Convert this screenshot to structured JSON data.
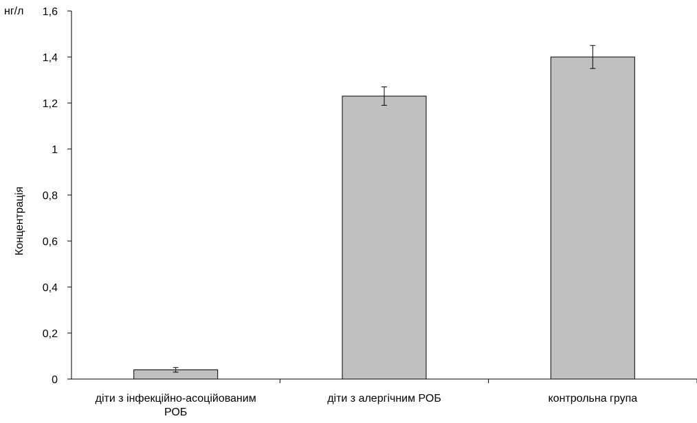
{
  "chart_data": {
    "type": "bar",
    "categories": [
      [
        "діти з інфекційно-асоційованим",
        "РОБ"
      ],
      [
        "діти з алергічним РОБ"
      ],
      [
        "контрольна група"
      ]
    ],
    "values": [
      0.04,
      1.23,
      1.4
    ],
    "error_bars": [
      0.01,
      0.04,
      0.05
    ],
    "unit_label": "нг/л",
    "ylabel": "Концентрація",
    "xlabel": "",
    "ylim": [
      0,
      1.6
    ],
    "yticks": [
      0,
      0.2,
      0.4,
      0.6,
      0.8,
      1,
      1.2,
      1.4,
      1.6
    ],
    "ytick_labels": [
      "0",
      "0,2",
      "0,4",
      "0,6",
      "0,8",
      "1",
      "1,2",
      "1,4",
      "1,6"
    ],
    "bar_color": "#c0c0c0",
    "grid": false,
    "legend": "none"
  }
}
